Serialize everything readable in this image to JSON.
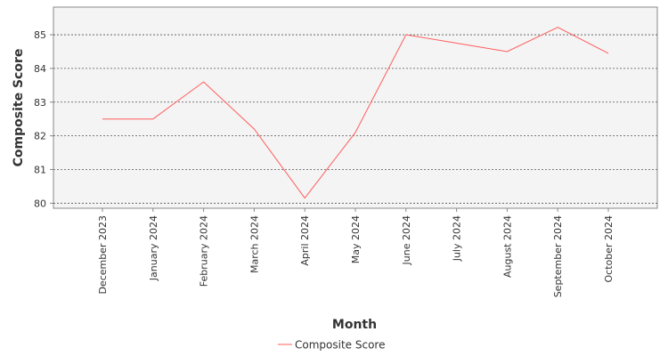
{
  "chart_data": {
    "type": "line",
    "title": "",
    "xlabel": "Month",
    "ylabel": "Composite Score",
    "categories": [
      "December 2023",
      "January 2024",
      "February 2024",
      "March 2024",
      "April 2024",
      "May 2024",
      "June 2024",
      "July 2024",
      "August 2024",
      "September 2024",
      "October 2024"
    ],
    "series": [
      {
        "name": "Composite Score",
        "color": "#ff5c5c",
        "values": [
          82.5,
          82.5,
          83.6,
          82.2,
          80.15,
          82.1,
          85.0,
          84.75,
          84.5,
          85.22,
          84.45
        ]
      }
    ],
    "ylim": [
      79.85,
      85.82
    ],
    "yticks": [
      80,
      81,
      82,
      83,
      84,
      85
    ],
    "grid": true,
    "legend_position": "bottom-center"
  }
}
